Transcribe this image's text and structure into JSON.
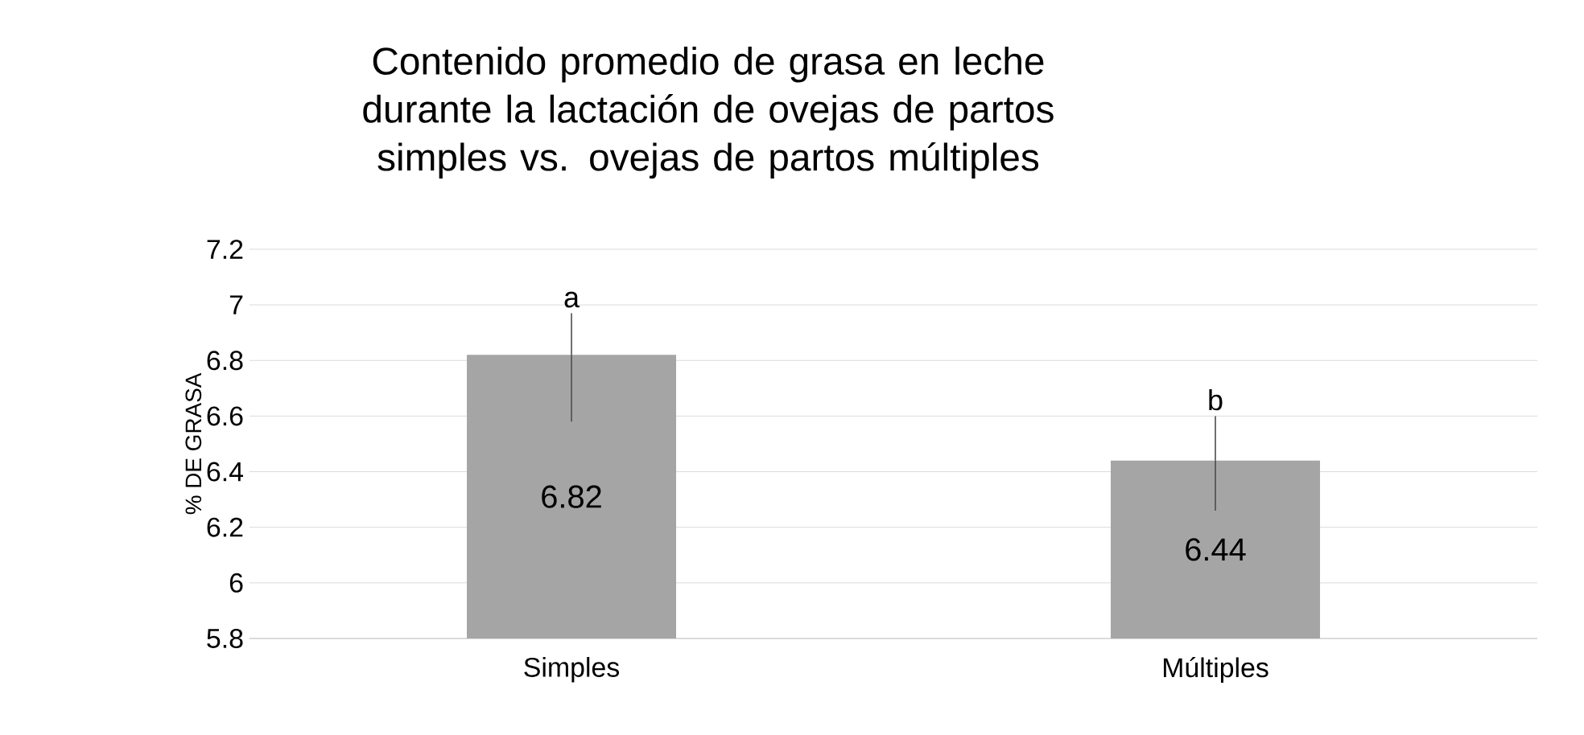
{
  "chart_data": {
    "type": "bar",
    "title": "Contenido promedio de grasa en leche durante la lactación de ovejas de partos simples vs. ovejas de partos múltiples",
    "ylabel": "% DE GRASA",
    "categories": [
      "Simples",
      "Múltiples"
    ],
    "values": [
      6.82,
      6.44
    ],
    "errors": [
      [
        6.58,
        6.97
      ],
      [
        6.26,
        6.6
      ]
    ],
    "color": "#a5a5a5",
    "ylim": [
      5.8,
      7.2
    ],
    "yticks": [
      5.8,
      6,
      6.2,
      6.4,
      6.6,
      6.8,
      7,
      7.2
    ],
    "grid": "y",
    "data_labels": true,
    "annotations": [
      "a",
      "b"
    ]
  }
}
